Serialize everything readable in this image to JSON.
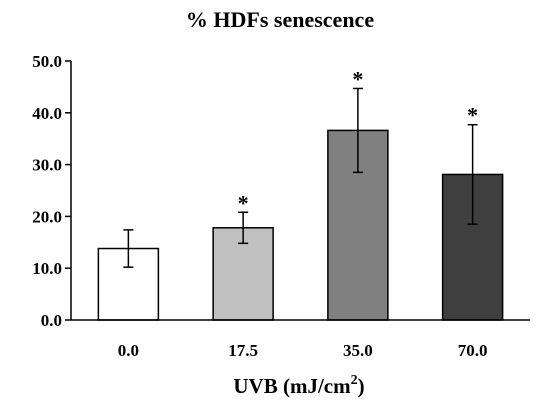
{
  "chart_data": {
    "type": "bar",
    "title": "% HDFs senescence",
    "xlabel": "UVB (mJ/cm",
    "xlabel_superscript": "2",
    "xlabel_suffix": ")",
    "ylabel": "",
    "ylim": [
      0,
      50
    ],
    "yticks": [
      "0.0",
      "10.0",
      "20.0",
      "30.0",
      "40.0",
      "50.0"
    ],
    "categories": [
      "0.0",
      "17.5",
      "35.0",
      "70.0"
    ],
    "values": [
      13.8,
      17.8,
      36.6,
      28.1
    ],
    "errors": [
      3.6,
      3.0,
      8.1,
      9.6
    ],
    "significance": [
      "",
      "*",
      "*",
      "*"
    ],
    "bar_colors": [
      "#ffffff",
      "#c0c0c0",
      "#808080",
      "#3f3f3f"
    ],
    "bar_edge_color": "#000000",
    "grid": false,
    "legend": "none"
  }
}
